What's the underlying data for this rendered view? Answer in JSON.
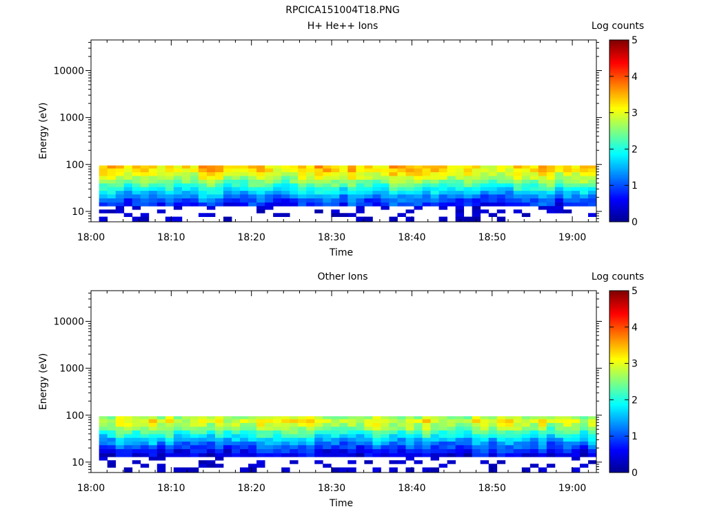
{
  "figure_title": "RPCICA151004T18.PNG",
  "colorbar": {
    "label": "Log counts",
    "ticks": [
      "0",
      "1",
      "2",
      "3",
      "4",
      "5"
    ],
    "range": [
      0,
      5
    ],
    "colormap": [
      "#00008f",
      "#0000ff",
      "#0080ff",
      "#00ffff",
      "#80ff80",
      "#ffff00",
      "#ff8000",
      "#ff0000",
      "#800000"
    ]
  },
  "chart_data": [
    {
      "type": "heatmap",
      "title": "H+ He++ Ions",
      "xlabel": "Time",
      "ylabel": "Energy (eV)",
      "x_ticks": [
        "18:00",
        "18:10",
        "18:20",
        "18:30",
        "18:40",
        "18:50",
        "19:00"
      ],
      "y_ticks": [
        "10",
        "100",
        "1000",
        "10000"
      ],
      "x_range": [
        "18:00",
        "19:03"
      ],
      "y_range": [
        6,
        45000
      ],
      "y_scale": "log",
      "data_extent": {
        "time": [
          "18:01",
          "19:03"
        ],
        "energy": [
          6,
          95
        ]
      },
      "z_range": [
        0,
        5
      ],
      "z_label": "Log counts",
      "profile": [
        {
          "energy": 90,
          "log_counts": 3.3
        },
        {
          "energy": 75,
          "log_counts": 3.2
        },
        {
          "energy": 62,
          "log_counts": 3.0
        },
        {
          "energy": 52,
          "log_counts": 2.8
        },
        {
          "energy": 43,
          "log_counts": 2.5
        },
        {
          "energy": 36,
          "log_counts": 2.2
        },
        {
          "energy": 30,
          "log_counts": 1.9
        },
        {
          "energy": 25,
          "log_counts": 1.6
        },
        {
          "energy": 21,
          "log_counts": 1.3
        },
        {
          "energy": 17,
          "log_counts": 1.0
        },
        {
          "energy": 14,
          "log_counts": 0.8
        },
        {
          "energy": 12,
          "log_counts": 0.3
        },
        {
          "energy": 10,
          "log_counts": 0.3
        },
        {
          "energy": 8.5,
          "log_counts": 0.3
        },
        {
          "energy": 7,
          "log_counts": 0.3
        }
      ]
    },
    {
      "type": "heatmap",
      "title": "Other Ions",
      "xlabel": "Time",
      "ylabel": "Energy (eV)",
      "x_ticks": [
        "18:00",
        "18:10",
        "18:20",
        "18:30",
        "18:40",
        "18:50",
        "19:00"
      ],
      "y_ticks": [
        "10",
        "100",
        "1000",
        "10000"
      ],
      "x_range": [
        "18:00",
        "19:03"
      ],
      "y_range": [
        6,
        45000
      ],
      "y_scale": "log",
      "data_extent": {
        "time": [
          "18:01",
          "19:03"
        ],
        "energy": [
          6,
          95
        ]
      },
      "z_range": [
        0,
        5
      ],
      "z_label": "Log counts",
      "profile": [
        {
          "energy": 90,
          "log_counts": 2.7
        },
        {
          "energy": 75,
          "log_counts": 3.0
        },
        {
          "energy": 62,
          "log_counts": 2.8
        },
        {
          "energy": 52,
          "log_counts": 2.5
        },
        {
          "energy": 43,
          "log_counts": 2.2
        },
        {
          "energy": 36,
          "log_counts": 1.9
        },
        {
          "energy": 30,
          "log_counts": 1.6
        },
        {
          "energy": 25,
          "log_counts": 1.3
        },
        {
          "energy": 21,
          "log_counts": 1.0
        },
        {
          "energy": 17,
          "log_counts": 0.7
        },
        {
          "energy": 14,
          "log_counts": 0.5
        },
        {
          "energy": 12,
          "log_counts": 0.3
        },
        {
          "energy": 10,
          "log_counts": 0.3
        },
        {
          "energy": 8.5,
          "log_counts": 0.3
        },
        {
          "energy": 7,
          "log_counts": 0.3
        }
      ]
    }
  ]
}
